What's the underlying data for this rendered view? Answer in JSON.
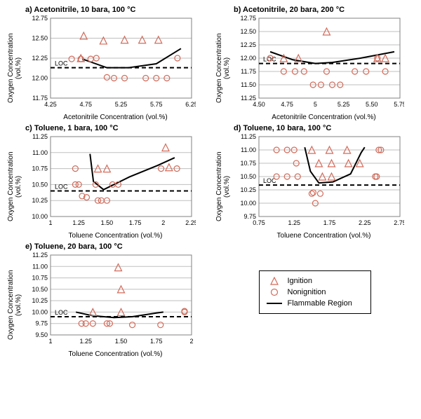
{
  "colors": {
    "marker": "#d26b5a",
    "grid": "#bfbfbf",
    "border": "#808080",
    "curve": "#000000",
    "loc": "#000000",
    "bg": "#ffffff"
  },
  "marker_size": 4,
  "legend": {
    "ignition": "Ignition",
    "nonignition": "Nonignition",
    "flammable": "Flammable Region"
  },
  "panels": {
    "a": {
      "title": "a) Acetonitrile, 10 bara, 100 °C",
      "xlabel": "Acetonitrile Concentration (vol.%)",
      "ylabel": "Oxygen Concentration\n(vol.%)",
      "xlim": [
        4.25,
        6.25
      ],
      "ylim": [
        11.75,
        12.75
      ],
      "xticks": [
        4.25,
        4.75,
        5.25,
        5.75,
        6.25
      ],
      "yticks": [
        11.75,
        12.0,
        12.25,
        12.5,
        12.75
      ],
      "loc": 12.13,
      "loc_label": "LOC",
      "ignition": [
        [
          4.72,
          12.53
        ],
        [
          5.0,
          12.47
        ],
        [
          5.3,
          12.48
        ],
        [
          5.55,
          12.48
        ],
        [
          5.78,
          12.48
        ],
        [
          4.68,
          12.25
        ]
      ],
      "nonignition": [
        [
          4.55,
          12.24
        ],
        [
          4.68,
          12.24
        ],
        [
          4.82,
          12.24
        ],
        [
          4.9,
          12.25
        ],
        [
          5.05,
          12.01
        ],
        [
          5.15,
          12.0
        ],
        [
          5.3,
          12.0
        ],
        [
          5.6,
          12.0
        ],
        [
          5.75,
          12.0
        ],
        [
          5.9,
          12.0
        ],
        [
          6.05,
          12.25
        ]
      ],
      "curve": [
        [
          4.7,
          12.24
        ],
        [
          5.05,
          12.13
        ],
        [
          5.35,
          12.13
        ],
        [
          5.75,
          12.18
        ],
        [
          6.1,
          12.37
        ]
      ]
    },
    "b": {
      "title": "b) Acetonitrile, 20 bara, 200 °C",
      "xlabel": "Acetonitrile Concentration (vol.%)",
      "ylabel": "Oxygen Concentration\n(vol.%)",
      "xlim": [
        4.5,
        5.75
      ],
      "ylim": [
        11.25,
        12.75
      ],
      "xticks": [
        4.5,
        4.75,
        5.0,
        5.25,
        5.5,
        5.75
      ],
      "yticks": [
        11.25,
        11.5,
        11.75,
        12.0,
        12.25,
        12.5,
        12.75
      ],
      "loc": 11.9,
      "loc_label": "LOC",
      "ignition": [
        [
          4.72,
          12.0
        ],
        [
          4.85,
          12.0
        ],
        [
          5.1,
          12.5
        ],
        [
          5.55,
          12.0
        ],
        [
          5.62,
          12.0
        ]
      ],
      "nonignition": [
        [
          4.6,
          12.0
        ],
        [
          4.72,
          11.75
        ],
        [
          4.82,
          11.75
        ],
        [
          4.9,
          11.75
        ],
        [
          4.98,
          11.5
        ],
        [
          5.05,
          11.5
        ],
        [
          5.15,
          11.5
        ],
        [
          5.22,
          11.5
        ],
        [
          5.1,
          11.75
        ],
        [
          5.35,
          11.75
        ],
        [
          5.45,
          11.75
        ],
        [
          5.62,
          11.75
        ],
        [
          5.55,
          12.0
        ]
      ],
      "curve": [
        [
          4.6,
          12.12
        ],
        [
          4.8,
          11.97
        ],
        [
          5.0,
          11.9
        ],
        [
          5.15,
          11.92
        ],
        [
          5.4,
          12.0
        ],
        [
          5.7,
          12.12
        ]
      ]
    },
    "c": {
      "title": "c) Toluene, 1 bara, 100 °C",
      "xlabel": "Toluene Concentration (vol.%)",
      "ylabel": "Oxygen Concentration\n(vol.%)",
      "xlim": [
        1,
        2.25
      ],
      "ylim": [
        10.0,
        11.25
      ],
      "xticks": [
        1,
        1.25,
        1.5,
        1.75,
        2,
        2.25
      ],
      "yticks": [
        10.0,
        10.25,
        10.5,
        10.75,
        11.0,
        11.25
      ],
      "loc": 10.4,
      "loc_label": "LOC",
      "ignition": [
        [
          1.42,
          10.75
        ],
        [
          1.5,
          10.75
        ],
        [
          2.02,
          11.08
        ],
        [
          2.05,
          10.77
        ]
      ],
      "nonignition": [
        [
          1.22,
          10.75
        ],
        [
          1.22,
          10.5
        ],
        [
          1.25,
          10.5
        ],
        [
          1.28,
          10.32
        ],
        [
          1.32,
          10.3
        ],
        [
          1.4,
          10.5
        ],
        [
          1.42,
          10.25
        ],
        [
          1.45,
          10.25
        ],
        [
          1.5,
          10.25
        ],
        [
          1.55,
          10.5
        ],
        [
          1.6,
          10.5
        ],
        [
          1.98,
          10.75
        ],
        [
          2.12,
          10.75
        ]
      ],
      "curve": [
        [
          1.35,
          10.98
        ],
        [
          1.38,
          10.55
        ],
        [
          1.47,
          10.42
        ],
        [
          1.7,
          10.62
        ],
        [
          1.95,
          10.8
        ],
        [
          2.1,
          10.92
        ]
      ]
    },
    "d": {
      "title": "d) Toluene, 10 bara, 100 °C",
      "xlabel": "Toluene Concentration (vol.%)",
      "ylabel": "Oxygen Concentration\n(vol.%)",
      "xlim": [
        0.75,
        2.75
      ],
      "ylim": [
        9.75,
        11.25
      ],
      "xticks": [
        0.75,
        1.25,
        1.75,
        2.25,
        2.75
      ],
      "yticks": [
        9.75,
        10.0,
        10.25,
        10.5,
        10.75,
        11.0,
        11.25
      ],
      "loc": 10.34,
      "loc_label": "LOC",
      "ignition": [
        [
          1.5,
          11.0
        ],
        [
          1.75,
          11.0
        ],
        [
          2.0,
          11.0
        ],
        [
          1.6,
          10.75
        ],
        [
          1.78,
          10.75
        ],
        [
          2.02,
          10.75
        ],
        [
          2.18,
          10.75
        ],
        [
          1.65,
          10.5
        ],
        [
          1.78,
          10.5
        ]
      ],
      "nonignition": [
        [
          1.0,
          11.0
        ],
        [
          1.15,
          11.0
        ],
        [
          1.25,
          11.0
        ],
        [
          2.45,
          11.0
        ],
        [
          2.48,
          11.0
        ],
        [
          1.28,
          10.75
        ],
        [
          2.4,
          10.5
        ],
        [
          2.42,
          10.5
        ],
        [
          1.0,
          10.5
        ],
        [
          1.15,
          10.5
        ],
        [
          1.3,
          10.5
        ],
        [
          1.5,
          10.18
        ],
        [
          1.52,
          10.2
        ],
        [
          1.62,
          10.18
        ],
        [
          1.55,
          10.0
        ]
      ],
      "curve": [
        [
          1.4,
          11.05
        ],
        [
          1.48,
          10.6
        ],
        [
          1.6,
          10.38
        ],
        [
          1.8,
          10.4
        ],
        [
          2.05,
          10.55
        ],
        [
          2.2,
          10.95
        ],
        [
          2.25,
          11.05
        ]
      ]
    },
    "e": {
      "title": "e) Toluene, 20 bara, 100 °C",
      "xlabel": "Toluene Concentration (vol.%)",
      "ylabel": "Oxygen Concentration\n(vol.%)",
      "xlim": [
        1,
        2
      ],
      "ylim": [
        9.5,
        11.25
      ],
      "xticks": [
        1,
        1.25,
        1.5,
        1.75,
        2
      ],
      "yticks": [
        9.5,
        9.75,
        10.0,
        10.25,
        10.5,
        10.75,
        11.0,
        11.25
      ],
      "loc": 9.9,
      "loc_label": "LOC",
      "ignition": [
        [
          1.48,
          10.98
        ],
        [
          1.5,
          10.5
        ],
        [
          1.3,
          10.0
        ],
        [
          1.5,
          10.0
        ]
      ],
      "nonignition": [
        [
          1.22,
          9.75
        ],
        [
          1.25,
          9.75
        ],
        [
          1.3,
          9.75
        ],
        [
          1.4,
          9.75
        ],
        [
          1.42,
          9.75
        ],
        [
          1.58,
          9.72
        ],
        [
          1.78,
          9.72
        ],
        [
          1.95,
          10.0
        ],
        [
          1.95,
          10.02
        ]
      ],
      "curve": [
        [
          1.18,
          10.0
        ],
        [
          1.3,
          9.92
        ],
        [
          1.45,
          9.88
        ],
        [
          1.58,
          9.9
        ],
        [
          1.75,
          9.98
        ],
        [
          1.8,
          10.0
        ]
      ]
    }
  }
}
